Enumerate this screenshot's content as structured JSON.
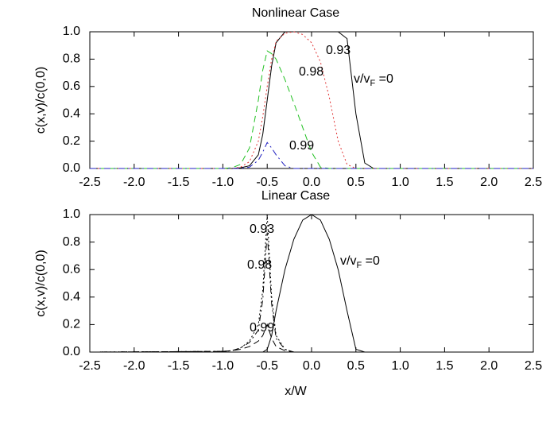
{
  "chart_data": [
    {
      "type": "line",
      "title": "Nonlinear Case",
      "ylabel": "c(x,v)/c(0,0)",
      "x": [
        -2.5,
        -1.0,
        -0.9,
        -0.8,
        -0.7,
        -0.6,
        -0.55,
        -0.5,
        -0.45,
        -0.4,
        -0.3,
        -0.2,
        -0.1,
        0.0,
        0.1,
        0.2,
        0.3,
        0.4,
        0.5,
        0.6,
        0.7,
        2.5
      ],
      "series": [
        {
          "name": "v/v",
          "name_subscript": "F",
          "name_suffix": " =0",
          "color": "#000000",
          "dash": "solid",
          "values": [
            0,
            0,
            0,
            0.005,
            0.02,
            0.1,
            0.25,
            0.5,
            0.75,
            0.92,
            1,
            1,
            1,
            1,
            1,
            1,
            1,
            0.95,
            0.4,
            0.04,
            0,
            0
          ]
        },
        {
          "name": "0.93",
          "color": "#e03030",
          "dash": "dotted",
          "values": [
            0,
            0,
            0,
            0.01,
            0.05,
            0.2,
            0.38,
            0.6,
            0.8,
            0.93,
            0.99,
            1,
            0.98,
            0.92,
            0.78,
            0.52,
            0.2,
            0.03,
            0,
            0,
            0,
            0
          ]
        },
        {
          "name": "0.98",
          "color": "#20c020",
          "dash": "dashed",
          "values": [
            0,
            0,
            0.005,
            0.03,
            0.15,
            0.5,
            0.72,
            0.86,
            0.84,
            0.8,
            0.65,
            0.48,
            0.3,
            0.12,
            0.01,
            0,
            0,
            0,
            0,
            0,
            0,
            0
          ]
        },
        {
          "name": "0.99",
          "color": "#2020c0",
          "dash": "dashdot",
          "values": [
            0,
            0,
            0,
            0,
            0.01,
            0.06,
            0.12,
            0.19,
            0.15,
            0.1,
            0.02,
            0,
            0,
            0,
            0,
            0,
            0,
            0,
            0,
            0,
            0,
            0
          ]
        }
      ],
      "xlim": [
        -2.5,
        2.5
      ],
      "xticks": [
        -2.5,
        {
          "value": -2,
          "label": "-2.0"
        },
        -1.5,
        {
          "value": -1,
          "label": "-1.0"
        },
        -0.5,
        {
          "value": 0,
          "label": "0.0"
        },
        0.5,
        {
          "value": 1,
          "label": "1.0"
        },
        1.5,
        {
          "value": 2,
          "label": "2.0"
        },
        2.5
      ],
      "ylim": [
        0,
        1
      ],
      "yticks": [
        {
          "value": 0,
          "label": "0.0"
        },
        0.2,
        0.4,
        0.6,
        0.8,
        {
          "value": 1,
          "label": "1.0"
        }
      ]
    },
    {
      "type": "line",
      "title": "Linear Case",
      "ylabel": "c(x,v)/c(0,0)",
      "xlabel": "x/W",
      "x": [
        -2.5,
        -1.0,
        -0.9,
        -0.8,
        -0.7,
        -0.6,
        -0.55,
        -0.5,
        -0.45,
        -0.4,
        -0.3,
        -0.2,
        -0.1,
        0.0,
        0.1,
        0.2,
        0.3,
        0.4,
        0.5,
        0.6,
        0.7,
        2.5
      ],
      "series": [
        {
          "name": "v/v",
          "name_subscript": "F",
          "name_suffix": " =0",
          "color": "#000000",
          "dash": "solid",
          "values": [
            0,
            0,
            0,
            0,
            0,
            0,
            0,
            0.02,
            0.12,
            0.3,
            0.6,
            0.82,
            0.96,
            1,
            0.96,
            0.82,
            0.6,
            0.3,
            0.02,
            0,
            0,
            0
          ]
        },
        {
          "name": "0.93",
          "color": "#000000",
          "dash": "dotted",
          "values": [
            0,
            0.005,
            0.01,
            0.03,
            0.08,
            0.2,
            0.45,
            1,
            0.4,
            0.12,
            0.02,
            0,
            0,
            0,
            0,
            0,
            0,
            0,
            0,
            0,
            0,
            0
          ]
        },
        {
          "name": "0.98",
          "color": "#000000",
          "dash": "dashdot",
          "values": [
            0,
            0.005,
            0.01,
            0.03,
            0.07,
            0.16,
            0.38,
            0.87,
            0.35,
            0.1,
            0.02,
            0,
            0,
            0,
            0,
            0,
            0,
            0,
            0,
            0,
            0,
            0
          ]
        },
        {
          "name": "0.99",
          "color": "#000000",
          "dash": "dashed",
          "values": [
            0,
            0.005,
            0.01,
            0.02,
            0.04,
            0.08,
            0.12,
            0.2,
            0.1,
            0.04,
            0.01,
            0,
            0,
            0,
            0,
            0,
            0,
            0,
            0,
            0,
            0,
            0
          ]
        }
      ],
      "xlim": [
        -2.5,
        2.5
      ],
      "xticks": [
        -2.5,
        {
          "value": -2,
          "label": "-2.0"
        },
        -1.5,
        {
          "value": -1,
          "label": "-1.0"
        },
        -0.5,
        {
          "value": 0,
          "label": "0.0"
        },
        0.5,
        {
          "value": 1,
          "label": "1.0"
        },
        1.5,
        {
          "value": 2,
          "label": "2.0"
        },
        2.5
      ],
      "ylim": [
        0,
        1
      ],
      "yticks": [
        {
          "value": 0,
          "label": "0.0"
        },
        0.2,
        0.4,
        0.6,
        0.8,
        {
          "value": 1,
          "label": "1.0"
        }
      ]
    }
  ]
}
